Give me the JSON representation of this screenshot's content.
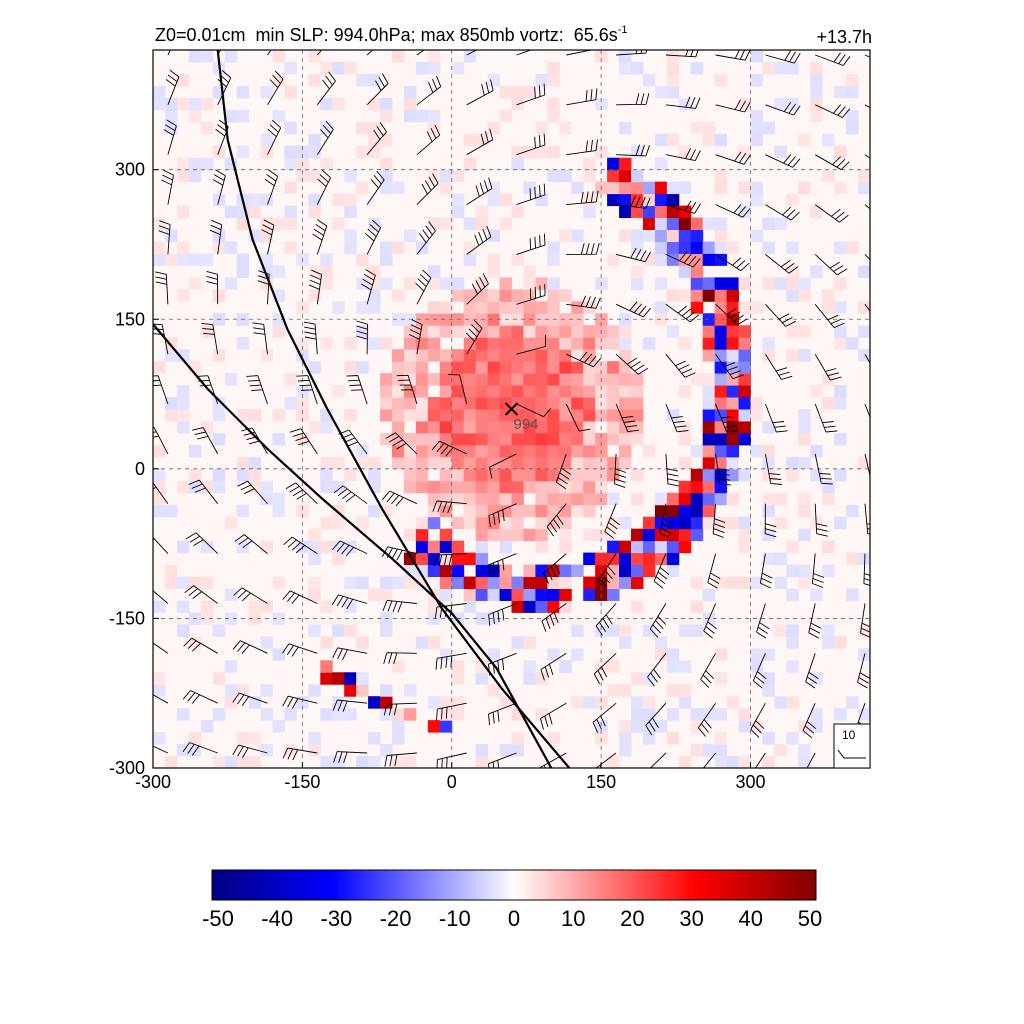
{
  "chart_data": {
    "type": "heatmap",
    "title_prefix": "Z0=0.01cm  min SLP: 994.0hPa; max 850mb vortz:  65.6s",
    "title_superscript": "-1",
    "forecast_time": "+13.7h",
    "xlim": [
      -300,
      420
    ],
    "ylim": [
      -300,
      420
    ],
    "x_ticks": [
      "-300",
      "-150",
      "0",
      "150",
      "300"
    ],
    "y_ticks": [
      "-300",
      "-150",
      "0",
      "150",
      "300"
    ],
    "x_tick_values": [
      -300,
      -150,
      0,
      150,
      300
    ],
    "y_tick_values": [
      -300,
      -150,
      0,
      150,
      300
    ],
    "grid": "dashed",
    "storm_center": {
      "x": 60,
      "y": 60,
      "marker": "x"
    },
    "slp_label": {
      "text": "994",
      "x": 62,
      "y": 45
    },
    "fronts": [
      [
        [
          -235,
          420
        ],
        [
          -225,
          330
        ],
        [
          -200,
          230
        ],
        [
          -165,
          140
        ],
        [
          -125,
          60
        ],
        [
          -70,
          -40
        ],
        [
          -10,
          -140
        ],
        [
          50,
          -220
        ],
        [
          118,
          -300
        ]
      ],
      [
        [
          -300,
          145
        ],
        [
          -245,
          80
        ],
        [
          -185,
          20
        ],
        [
          -130,
          -30
        ],
        [
          -60,
          -90
        ],
        [
          0,
          -145
        ],
        [
          45,
          -200
        ],
        [
          100,
          -300
        ]
      ]
    ],
    "barb_reference": {
      "label": "10"
    },
    "colorbar": {
      "min": -50,
      "max": 50,
      "colors": [
        "#000080",
        "#0000ff",
        "#ffffff",
        "#ff0000",
        "#800000"
      ],
      "ticks": [
        "-50",
        "-40",
        "-30",
        "-20",
        "-10",
        "0",
        "10",
        "20",
        "30",
        "40",
        "50"
      ]
    }
  }
}
